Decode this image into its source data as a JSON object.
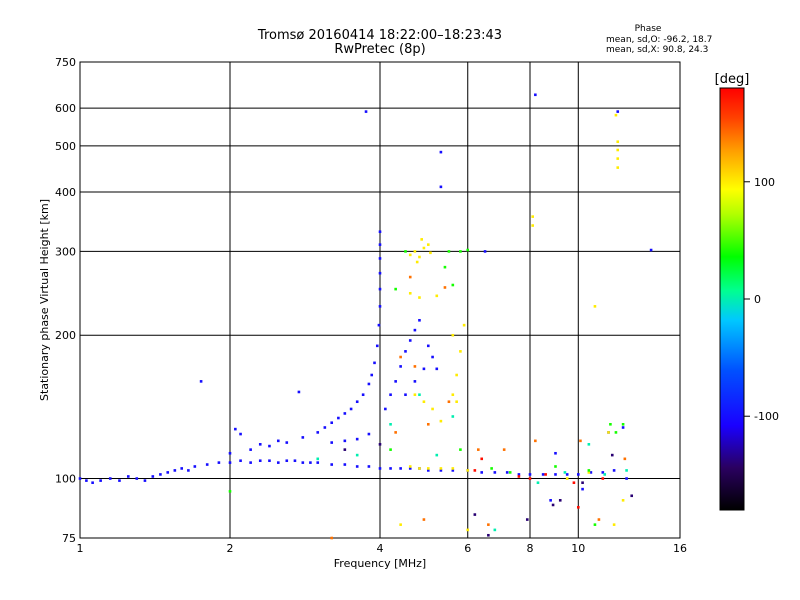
{
  "chart_data": {
    "type": "scatter",
    "title": "Tromsø 20160414 18:22:00–18:23:43",
    "subtitle": "RwPretec (8p)",
    "phase_box": {
      "heading": "Phase",
      "line_o": "mean, sd,O: -96.2, 18.7",
      "line_x": "mean, sd,X:  90.8, 24.3"
    },
    "xlabel": "Frequency [MHz]",
    "ylabel": "Stationary phase Virtual Height [km]",
    "x_scale": "log",
    "y_scale": "log",
    "xlim": [
      1,
      16
    ],
    "ylim": [
      75,
      750
    ],
    "x_ticks": [
      {
        "value": 1,
        "label": "1"
      },
      {
        "value": 2,
        "label": "2"
      },
      {
        "value": 4,
        "label": "4"
      },
      {
        "value": 6,
        "label": "6"
      },
      {
        "value": 8,
        "label": "8"
      },
      {
        "value": 10,
        "label": "10"
      },
      {
        "value": 16,
        "label": "16"
      }
    ],
    "y_ticks": [
      {
        "value": 75,
        "label": "75"
      },
      {
        "value": 100,
        "label": "100"
      },
      {
        "value": 200,
        "label": "200"
      },
      {
        "value": 300,
        "label": "300"
      },
      {
        "value": 400,
        "label": "400"
      },
      {
        "value": 500,
        "label": "500"
      },
      {
        "value": 600,
        "label": "600"
      },
      {
        "value": 750,
        "label": "750"
      }
    ],
    "grid": true,
    "colorbar": {
      "title": "[deg]",
      "range": [
        -180,
        180
      ],
      "ticks": [
        {
          "value": 100,
          "label": "100"
        },
        {
          "value": 0,
          "label": "0"
        },
        {
          "value": -100,
          "label": "-100"
        }
      ]
    },
    "series": [
      {
        "points": [
          [
            1.0,
            100,
            -100
          ],
          [
            1.03,
            99,
            -100
          ],
          [
            1.06,
            98,
            -100
          ],
          [
            1.1,
            99,
            -100
          ],
          [
            1.15,
            100,
            -100
          ],
          [
            1.2,
            99,
            -100
          ],
          [
            1.25,
            101,
            -100
          ],
          [
            1.3,
            100,
            -100
          ],
          [
            1.35,
            99,
            -100
          ],
          [
            1.4,
            101,
            -100
          ],
          [
            1.45,
            102,
            -100
          ],
          [
            1.5,
            103,
            -100
          ],
          [
            1.55,
            104,
            -100
          ],
          [
            1.6,
            105,
            -100
          ],
          [
            1.65,
            104,
            -100
          ],
          [
            1.7,
            106,
            -100
          ],
          [
            1.8,
            107,
            -100
          ],
          [
            1.9,
            108,
            -100
          ],
          [
            2.0,
            108,
            -100
          ],
          [
            2.1,
            109,
            -100
          ],
          [
            2.2,
            108,
            -100
          ],
          [
            2.3,
            109,
            -100
          ],
          [
            2.4,
            109,
            -100
          ],
          [
            2.5,
            108,
            -100
          ],
          [
            2.6,
            109,
            -100
          ],
          [
            2.7,
            109,
            -100
          ],
          [
            2.8,
            108,
            -100
          ],
          [
            2.9,
            108,
            -100
          ],
          [
            3.0,
            108,
            -100
          ],
          [
            3.2,
            107,
            -100
          ],
          [
            3.4,
            107,
            -100
          ],
          [
            3.6,
            106,
            -100
          ],
          [
            3.8,
            106,
            -100
          ],
          [
            4.0,
            105,
            -100
          ],
          [
            4.2,
            105,
            -100
          ],
          [
            4.4,
            105,
            -100
          ],
          [
            4.6,
            105,
            -100
          ],
          [
            4.8,
            105,
            -100
          ],
          [
            5.0,
            104,
            -100
          ],
          [
            5.3,
            104,
            -100
          ],
          [
            5.6,
            104,
            -100
          ],
          [
            6.0,
            104,
            -100
          ],
          [
            6.4,
            103,
            -100
          ],
          [
            6.8,
            103,
            -100
          ],
          [
            7.2,
            103,
            -100
          ],
          [
            7.6,
            102,
            -100
          ],
          [
            8.0,
            102,
            -100
          ],
          [
            8.5,
            102,
            -100
          ],
          [
            9.0,
            102,
            -100
          ],
          [
            9.5,
            102,
            -100
          ],
          [
            10.0,
            102,
            -100
          ],
          [
            10.6,
            103,
            -100
          ],
          [
            11.2,
            103,
            -100
          ],
          [
            11.8,
            104,
            -100
          ],
          [
            2.0,
            113,
            -100
          ],
          [
            2.2,
            115,
            -100
          ],
          [
            2.4,
            117,
            -100
          ],
          [
            2.6,
            119,
            -100
          ],
          [
            2.8,
            122,
            -100
          ],
          [
            3.0,
            125,
            -100
          ],
          [
            3.1,
            128,
            -100
          ],
          [
            3.2,
            131,
            -100
          ],
          [
            3.3,
            134,
            -100
          ],
          [
            3.4,
            137,
            -100
          ],
          [
            3.5,
            140,
            -100
          ],
          [
            3.6,
            145,
            -100
          ],
          [
            3.7,
            150,
            -100
          ],
          [
            3.8,
            158,
            -100
          ],
          [
            3.85,
            165,
            -100
          ],
          [
            3.9,
            175,
            -100
          ],
          [
            3.95,
            190,
            -100
          ],
          [
            3.98,
            210,
            -100
          ],
          [
            4.0,
            230,
            -100
          ],
          [
            4.0,
            250,
            -100
          ],
          [
            4.0,
            270,
            -100
          ],
          [
            4.0,
            290,
            -100
          ],
          [
            4.0,
            310,
            -100
          ],
          [
            4.0,
            330,
            -100
          ],
          [
            4.1,
            140,
            -100
          ],
          [
            4.2,
            150,
            -100
          ],
          [
            4.3,
            160,
            -100
          ],
          [
            4.4,
            172,
            -100
          ],
          [
            4.5,
            185,
            -100
          ],
          [
            4.6,
            195,
            -100
          ],
          [
            4.7,
            205,
            -100
          ],
          [
            4.8,
            215,
            -100
          ],
          [
            4.5,
            150,
            -100
          ],
          [
            4.7,
            160,
            -100
          ],
          [
            4.9,
            170,
            -100
          ],
          [
            5.1,
            180,
            -100
          ],
          [
            5.2,
            170,
            -100
          ],
          [
            5.0,
            190,
            -100
          ],
          [
            3.2,
            119,
            -100
          ],
          [
            3.4,
            120,
            -100
          ],
          [
            3.6,
            121,
            -100
          ],
          [
            3.8,
            124,
            -100
          ],
          [
            2.5,
            120,
            -100
          ],
          [
            2.3,
            118,
            -100
          ],
          [
            2.1,
            124,
            -100
          ],
          [
            2.05,
            127,
            -100
          ],
          [
            1.75,
            160,
            -100
          ],
          [
            2.75,
            152,
            -100
          ],
          [
            3.75,
            590,
            -100
          ],
          [
            5.3,
            485,
            -100
          ],
          [
            5.3,
            410,
            -100
          ],
          [
            8.2,
            640,
            -100
          ],
          [
            6.5,
            300,
            -100
          ],
          [
            14.0,
            302,
            -100
          ],
          [
            12.0,
            590,
            -100
          ],
          [
            8.8,
            90,
            -100
          ],
          [
            10.2,
            95,
            -100
          ],
          [
            12.5,
            100,
            -100
          ],
          [
            9.0,
            113,
            -100
          ],
          [
            11.5,
            125,
            -100
          ],
          [
            12.3,
            128,
            -100
          ],
          [
            4.6,
            295,
            100
          ],
          [
            4.7,
            300,
            100
          ],
          [
            4.8,
            292,
            100
          ],
          [
            4.9,
            305,
            100
          ],
          [
            5.0,
            310,
            100
          ],
          [
            4.75,
            285,
            100
          ],
          [
            5.05,
            298,
            100
          ],
          [
            4.85,
            318,
            100
          ],
          [
            4.6,
            245,
            100
          ],
          [
            4.8,
            240,
            100
          ],
          [
            5.2,
            242,
            100
          ],
          [
            4.7,
            150,
            100
          ],
          [
            4.9,
            145,
            100
          ],
          [
            5.1,
            140,
            100
          ],
          [
            5.3,
            132,
            100
          ],
          [
            5.6,
            150,
            100
          ],
          [
            5.7,
            165,
            100
          ],
          [
            5.8,
            185,
            100
          ],
          [
            5.6,
            200,
            100
          ],
          [
            5.9,
            210,
            100
          ],
          [
            5.7,
            145,
            100
          ],
          [
            4.6,
            106,
            100
          ],
          [
            4.8,
            105,
            100
          ],
          [
            5.0,
            105,
            100
          ],
          [
            5.3,
            105,
            100
          ],
          [
            5.6,
            105,
            100
          ],
          [
            6.0,
            104,
            100
          ],
          [
            12.0,
            450,
            100
          ],
          [
            12.0,
            470,
            100
          ],
          [
            12.0,
            490,
            100
          ],
          [
            12.0,
            510,
            100
          ],
          [
            11.9,
            580,
            100
          ],
          [
            8.1,
            340,
            100
          ],
          [
            8.1,
            355,
            100
          ],
          [
            10.8,
            230,
            100
          ],
          [
            4.4,
            80,
            100
          ],
          [
            6.0,
            78,
            100
          ],
          [
            12.3,
            90,
            100
          ],
          [
            11.8,
            80,
            100
          ],
          [
            11.5,
            125,
            100
          ],
          [
            9.5,
            100,
            100
          ],
          [
            10.5,
            103,
            100
          ],
          [
            4.3,
            250,
            40
          ],
          [
            5.8,
            300,
            40
          ],
          [
            5.6,
            255,
            40
          ],
          [
            4.5,
            300,
            40
          ],
          [
            5.4,
            278,
            40
          ],
          [
            6.0,
            302,
            40
          ],
          [
            11.9,
            125,
            40
          ],
          [
            12.3,
            130,
            40
          ],
          [
            10.5,
            104,
            40
          ],
          [
            7.3,
            103,
            40
          ],
          [
            6.7,
            105,
            40
          ],
          [
            11.6,
            130,
            40
          ],
          [
            2.0,
            94,
            40
          ],
          [
            5.5,
            300,
            40
          ],
          [
            10.8,
            80,
            40
          ],
          [
            4.2,
            115,
            40
          ],
          [
            5.8,
            115,
            40
          ],
          [
            9.0,
            106,
            40
          ],
          [
            4.4,
            180,
            140
          ],
          [
            5.0,
            130,
            140
          ],
          [
            5.5,
            145,
            140
          ],
          [
            4.3,
            125,
            140
          ],
          [
            6.6,
            80,
            140
          ],
          [
            7.1,
            115,
            140
          ],
          [
            8.2,
            120,
            140
          ],
          [
            10.1,
            120,
            140
          ],
          [
            12.4,
            110,
            140
          ],
          [
            3.2,
            75,
            140
          ],
          [
            4.9,
            82,
            140
          ],
          [
            5.4,
            252,
            140
          ],
          [
            4.7,
            172,
            140
          ],
          [
            6.3,
            115,
            140
          ],
          [
            4.6,
            265,
            140
          ],
          [
            11.0,
            82,
            140
          ],
          [
            9.8,
            98,
            175
          ],
          [
            8.0,
            100,
            175
          ],
          [
            6.4,
            110,
            175
          ],
          [
            7.6,
            101,
            175
          ],
          [
            10.0,
            87,
            175
          ],
          [
            11.2,
            100,
            175
          ],
          [
            6.2,
            104,
            175
          ],
          [
            8.6,
            102,
            175
          ],
          [
            3.0,
            110,
            0
          ],
          [
            4.2,
            130,
            0
          ],
          [
            4.8,
            150,
            0
          ],
          [
            5.6,
            135,
            0
          ],
          [
            9.4,
            103,
            0
          ],
          [
            11.3,
            102,
            0
          ],
          [
            12.5,
            104,
            0
          ],
          [
            6.8,
            78,
            0
          ],
          [
            10.5,
            118,
            0
          ],
          [
            3.6,
            112,
            0
          ],
          [
            8.3,
            98,
            0
          ],
          [
            5.2,
            112,
            0
          ],
          [
            4.0,
            118,
            -140
          ],
          [
            3.4,
            115,
            -140
          ],
          [
            6.2,
            84,
            -140
          ],
          [
            7.9,
            82,
            -140
          ],
          [
            10.2,
            98,
            -140
          ],
          [
            9.2,
            90,
            -140
          ],
          [
            12.8,
            92,
            -140
          ],
          [
            6.6,
            76,
            -140
          ],
          [
            11.7,
            112,
            -140
          ],
          [
            8.9,
            88,
            -140
          ]
        ]
      }
    ]
  }
}
